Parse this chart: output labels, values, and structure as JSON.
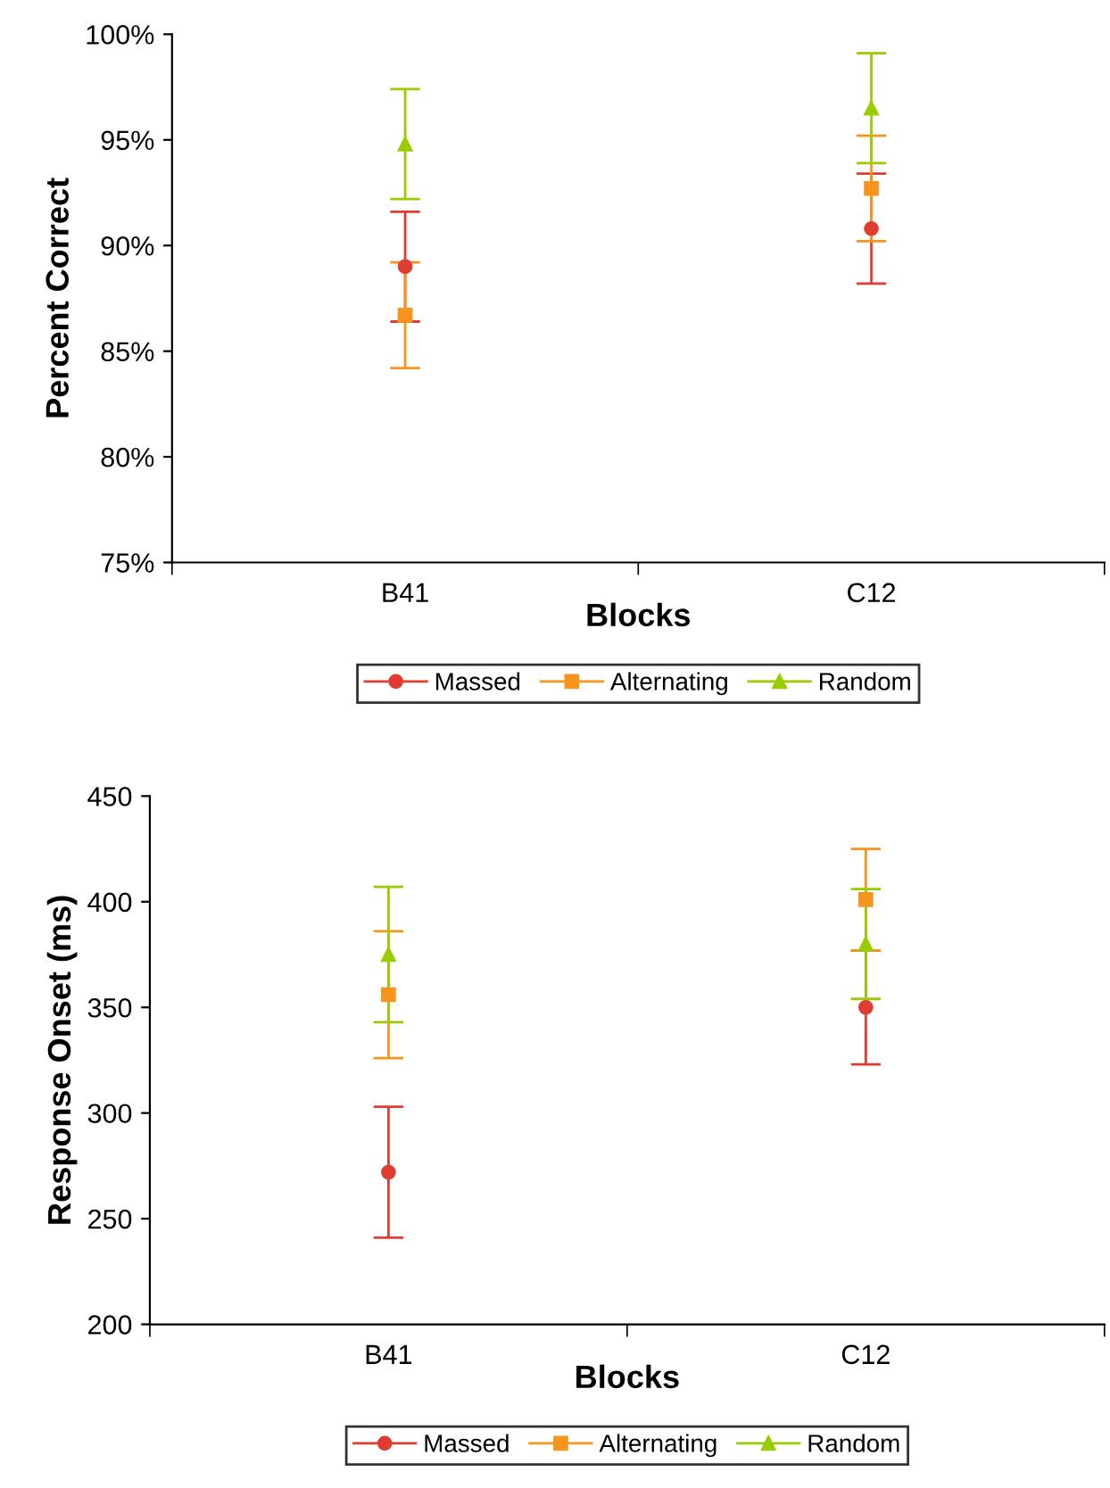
{
  "chart_data": [
    {
      "type": "scatter",
      "xlabel": "Blocks",
      "ylabel": "Percent Correct",
      "categories": [
        "B41",
        "C12"
      ],
      "ylim": [
        75,
        100
      ],
      "yticks": [
        {
          "value": 75,
          "label": "75%"
        },
        {
          "value": 80,
          "label": "80%"
        },
        {
          "value": 85,
          "label": "85%"
        },
        {
          "value": 90,
          "label": "90%"
        },
        {
          "value": 95,
          "label": "95%"
        },
        {
          "value": 100,
          "label": "100%"
        }
      ],
      "grid": false,
      "legend": "bottom",
      "series": [
        {
          "name": "Massed",
          "color": "#e03c31",
          "marker": "circle",
          "values": [
            89.0,
            90.8
          ],
          "errors": [
            2.6,
            2.6
          ]
        },
        {
          "name": "Alternating",
          "color": "#f7941d",
          "marker": "square",
          "values": [
            86.7,
            92.7
          ],
          "errors": [
            2.5,
            2.5
          ]
        },
        {
          "name": "Random",
          "color": "#99cc00",
          "marker": "triangle",
          "values": [
            94.8,
            96.5
          ],
          "errors": [
            2.6,
            2.6
          ]
        }
      ]
    },
    {
      "type": "scatter",
      "xlabel": "Blocks",
      "ylabel": "Response Onset (ms)",
      "categories": [
        "B41",
        "C12"
      ],
      "ylim": [
        200,
        450
      ],
      "yticks": [
        200,
        250,
        300,
        350,
        400,
        450
      ],
      "grid": false,
      "legend": "bottom",
      "series": [
        {
          "name": "Massed",
          "color": "#e03c31",
          "marker": "circle",
          "values": [
            272,
            350
          ],
          "errors": [
            31,
            27
          ]
        },
        {
          "name": "Alternating",
          "color": "#f7941d",
          "marker": "square",
          "values": [
            356,
            401
          ],
          "errors": [
            30,
            24
          ]
        },
        {
          "name": "Random",
          "color": "#99cc00",
          "marker": "triangle",
          "values": [
            375,
            380
          ],
          "errors": [
            32,
            26
          ]
        }
      ]
    }
  ]
}
